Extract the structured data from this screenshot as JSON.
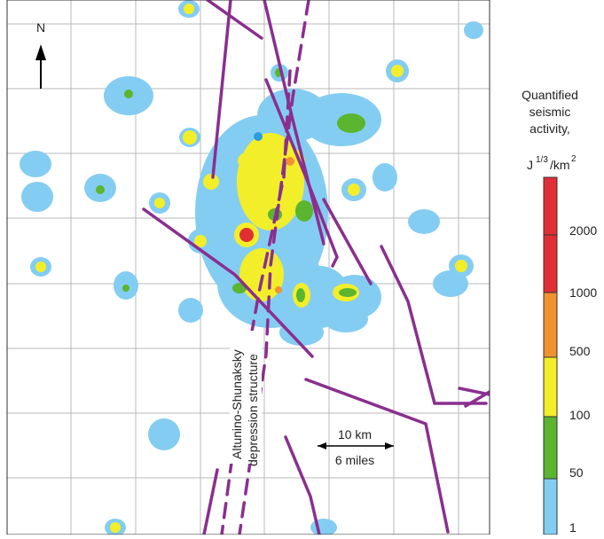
{
  "map": {
    "north": "N",
    "scale": {
      "km": "10 km",
      "miles": "6 miles"
    },
    "structure_label": [
      "Altunino-Shunaksky",
      "depression structure"
    ],
    "legend": {
      "title": [
        "Quantified",
        "seismic",
        "activity,"
      ],
      "unit": {
        "base": "J",
        "exp": "1/3",
        "per": "/km",
        "per_exp": "2"
      },
      "labels": [
        "2000",
        "1000",
        "500",
        "100",
        "50",
        "1"
      ]
    }
  }
}
